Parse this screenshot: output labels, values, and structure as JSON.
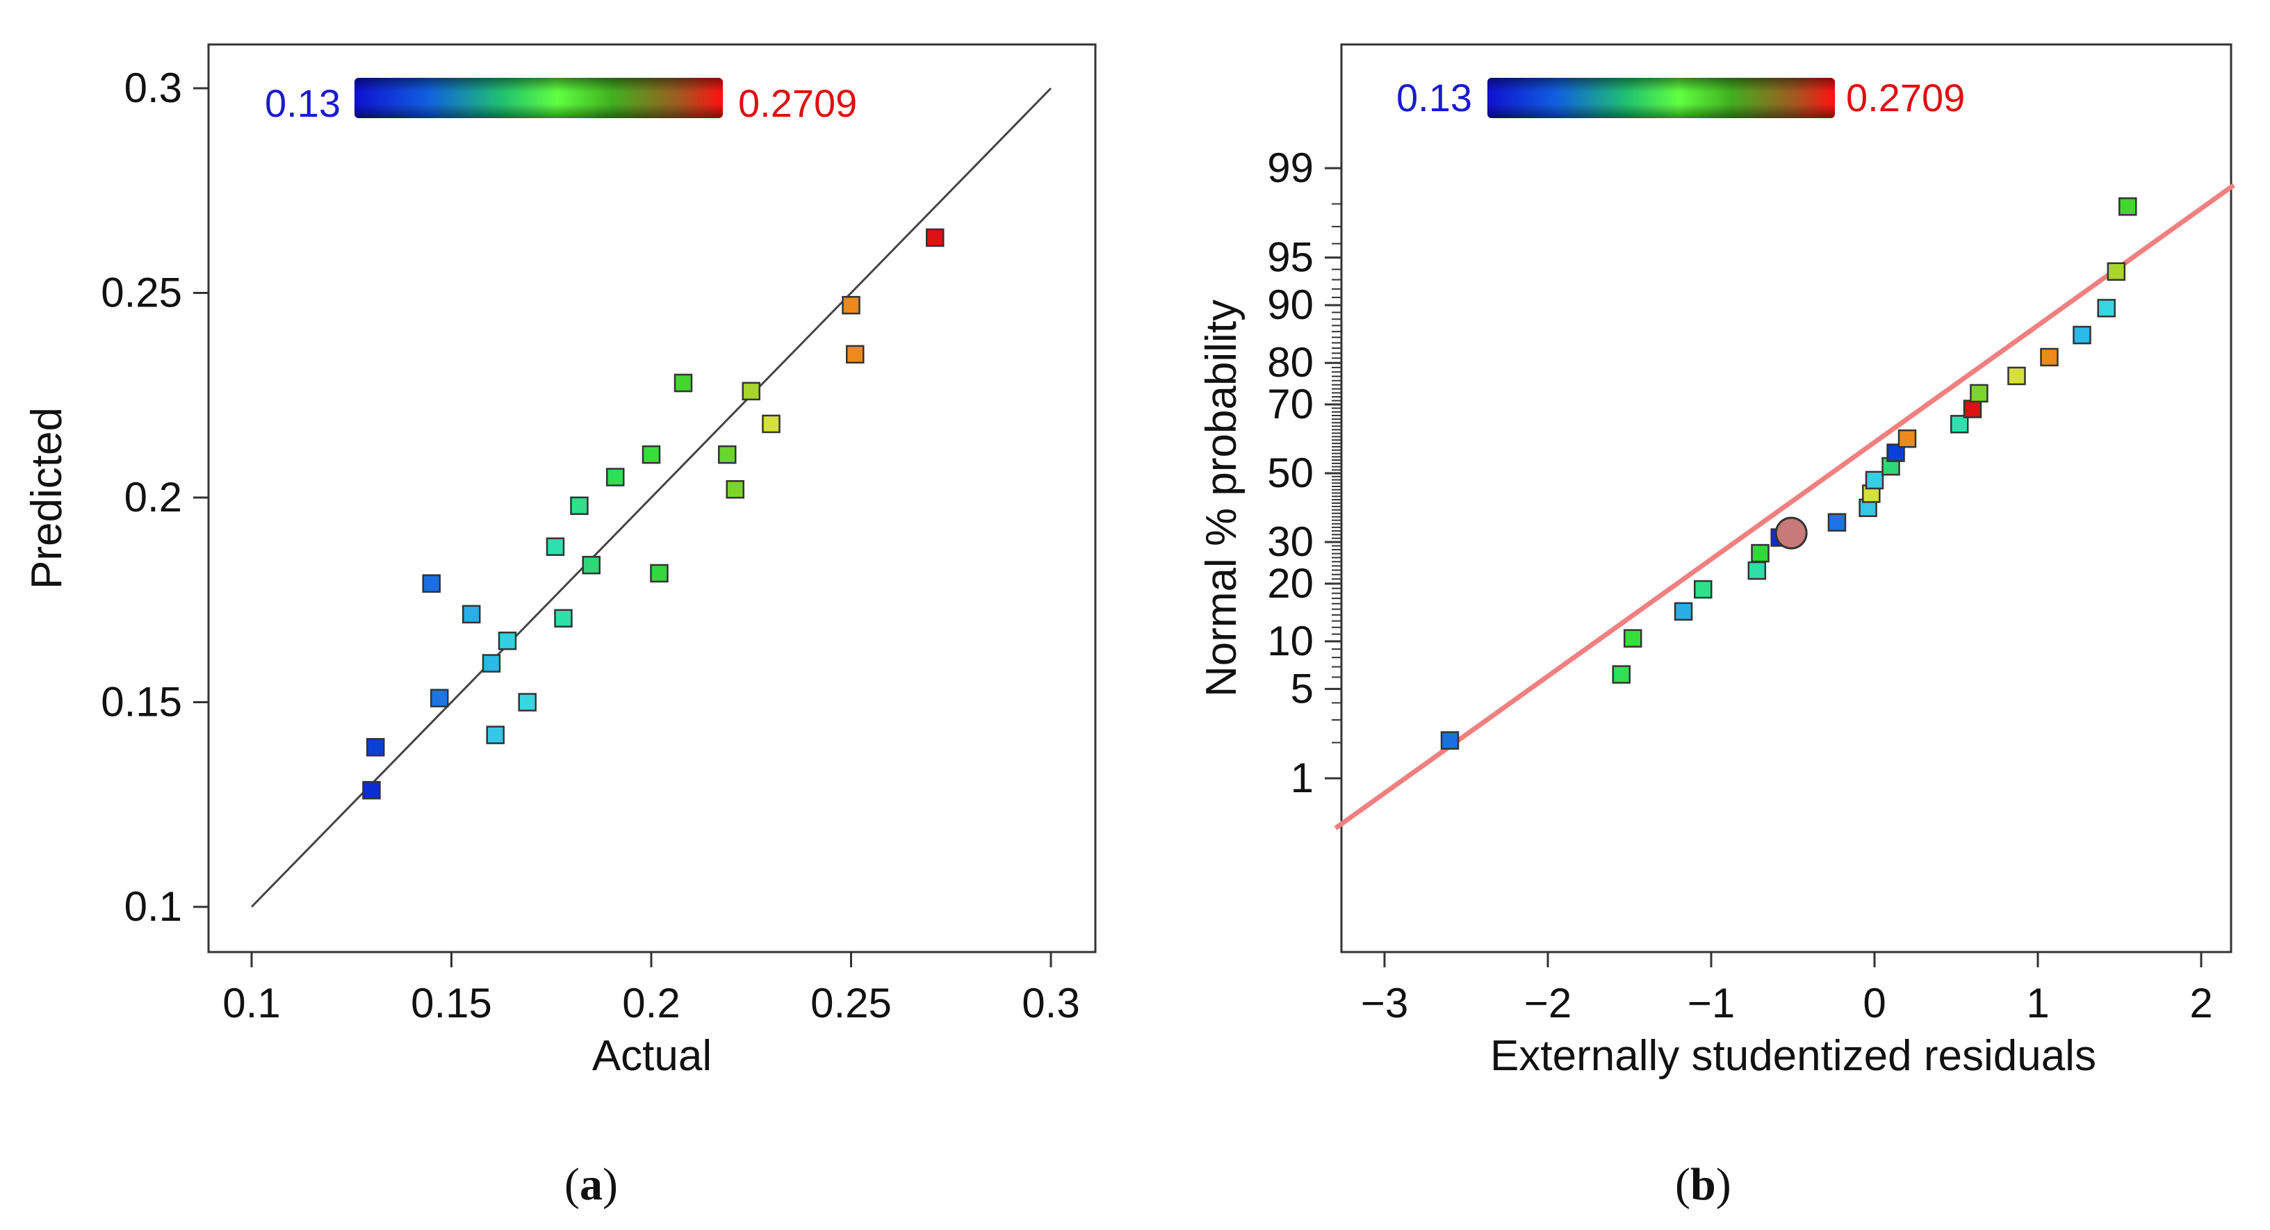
{
  "charts": [
    {
      "id": "a",
      "type": "scatter",
      "panel_label": "a",
      "xlabel": "Actual",
      "ylabel": "Predicted",
      "xlim": [
        0.1,
        0.3
      ],
      "ylim": [
        0.1,
        0.3
      ],
      "xticks": [
        "0.1",
        "0.15",
        "0.2",
        "0.25",
        "0.3"
      ],
      "yticks": [
        "0.1",
        "0.15",
        "0.2",
        "0.25",
        "0.3"
      ],
      "reference_line": {
        "from": [
          0.1,
          0.1
        ],
        "to": [
          0.3,
          0.3
        ],
        "color": "#444444"
      },
      "colorbar": {
        "min_label": "0.13",
        "max_label": "0.2709",
        "min_color": "#1a1ad0",
        "max_color": "#dd1111"
      },
      "points": [
        {
          "x": 0.13,
          "y": 0.1285,
          "color": "#0a2fd0"
        },
        {
          "x": 0.131,
          "y": 0.139,
          "color": "#0a3fd8"
        },
        {
          "x": 0.145,
          "y": 0.179,
          "color": "#1b6fe0"
        },
        {
          "x": 0.147,
          "y": 0.151,
          "color": "#1e74e6"
        },
        {
          "x": 0.155,
          "y": 0.1715,
          "color": "#2aaee8"
        },
        {
          "x": 0.16,
          "y": 0.1595,
          "color": "#2ab9e8"
        },
        {
          "x": 0.161,
          "y": 0.142,
          "color": "#38c6e8"
        },
        {
          "x": 0.164,
          "y": 0.165,
          "color": "#34cfe0"
        },
        {
          "x": 0.169,
          "y": 0.15,
          "color": "#3ad6e0"
        },
        {
          "x": 0.176,
          "y": 0.188,
          "color": "#2ee0b0"
        },
        {
          "x": 0.178,
          "y": 0.1705,
          "color": "#2ee0a8"
        },
        {
          "x": 0.182,
          "y": 0.198,
          "color": "#2ee08a"
        },
        {
          "x": 0.185,
          "y": 0.1835,
          "color": "#2ed876"
        },
        {
          "x": 0.191,
          "y": 0.205,
          "color": "#2ee055"
        },
        {
          "x": 0.2,
          "y": 0.2105,
          "color": "#33e03a"
        },
        {
          "x": 0.202,
          "y": 0.1815,
          "color": "#33d83a"
        },
        {
          "x": 0.208,
          "y": 0.228,
          "color": "#40d82a"
        },
        {
          "x": 0.219,
          "y": 0.2105,
          "color": "#6ad62a"
        },
        {
          "x": 0.221,
          "y": 0.202,
          "color": "#7cd62a"
        },
        {
          "x": 0.225,
          "y": 0.226,
          "color": "#a8d62a"
        },
        {
          "x": 0.23,
          "y": 0.218,
          "color": "#d6e03a"
        },
        {
          "x": 0.25,
          "y": 0.247,
          "color": "#ee8a1a"
        },
        {
          "x": 0.251,
          "y": 0.235,
          "color": "#ee8a1a"
        },
        {
          "x": 0.271,
          "y": 0.2635,
          "color": "#dd1111"
        }
      ]
    },
    {
      "id": "b",
      "type": "scatter",
      "panel_label": "b",
      "xlabel": "Externally studentized residuals",
      "ylabel": "Normal % probability",
      "xlim": [
        -3.3,
        2.2
      ],
      "yscale": "normal-probability",
      "xticks": [
        "−3",
        "−2",
        "−1",
        "0",
        "1",
        "2"
      ],
      "yticks": [
        "1",
        "5",
        "10",
        "20",
        "30",
        "50",
        "70",
        "80",
        "90",
        "95",
        "99"
      ],
      "reference_line": {
        "from": [
          -3.3,
          0.34
        ],
        "to": [
          2.2,
          98.6
        ],
        "color": "#f08080"
      },
      "colorbar": {
        "min_label": "0.13",
        "max_label": "0.2709",
        "min_color": "#1a1ad0",
        "max_color": "#dd1111"
      },
      "highlighted_point": {
        "x": -0.51,
        "y": 32.4,
        "color": "#c87a7a"
      },
      "points": [
        {
          "x": -2.6,
          "y": 2.08,
          "color": "#1b6fe0"
        },
        {
          "x": -1.55,
          "y": 6.25,
          "color": "#2ee055"
        },
        {
          "x": -1.48,
          "y": 10.4,
          "color": "#33e03a"
        },
        {
          "x": -1.17,
          "y": 14.6,
          "color": "#2aaee8"
        },
        {
          "x": -1.05,
          "y": 18.8,
          "color": "#2ee08a"
        },
        {
          "x": -0.72,
          "y": 22.9,
          "color": "#2ee0a8"
        },
        {
          "x": -0.7,
          "y": 27.1,
          "color": "#33d83a"
        },
        {
          "x": -0.58,
          "y": 31.2,
          "color": "#0a2fd0"
        },
        {
          "x": -0.23,
          "y": 35.4,
          "color": "#1e74e6"
        },
        {
          "x": -0.04,
          "y": 39.6,
          "color": "#38c6e8"
        },
        {
          "x": -0.02,
          "y": 43.8,
          "color": "#d6e03a"
        },
        {
          "x": 0.0,
          "y": 47.9,
          "color": "#34cfe0"
        },
        {
          "x": 0.1,
          "y": 52.1,
          "color": "#2ed876"
        },
        {
          "x": 0.13,
          "y": 56.2,
          "color": "#0a3fd8"
        },
        {
          "x": 0.2,
          "y": 60.4,
          "color": "#ee8a1a"
        },
        {
          "x": 0.52,
          "y": 64.6,
          "color": "#2ee0b0"
        },
        {
          "x": 0.6,
          "y": 68.8,
          "color": "#dd1111"
        },
        {
          "x": 0.64,
          "y": 72.9,
          "color": "#7cd62a"
        },
        {
          "x": 0.87,
          "y": 77.1,
          "color": "#d6e03a"
        },
        {
          "x": 1.07,
          "y": 81.2,
          "color": "#ee8a1a"
        },
        {
          "x": 1.27,
          "y": 85.4,
          "color": "#2ab9e8"
        },
        {
          "x": 1.42,
          "y": 89.6,
          "color": "#3ad6e0"
        },
        {
          "x": 1.48,
          "y": 93.8,
          "color": "#a8d62a"
        },
        {
          "x": 1.55,
          "y": 97.9,
          "color": "#40d82a"
        }
      ]
    }
  ]
}
